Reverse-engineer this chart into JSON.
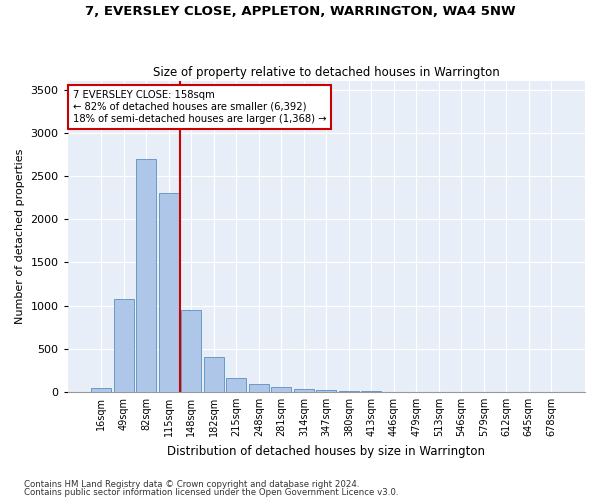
{
  "title": "7, EVERSLEY CLOSE, APPLETON, WARRINGTON, WA4 5NW",
  "subtitle": "Size of property relative to detached houses in Warrington",
  "xlabel": "Distribution of detached houses by size in Warrington",
  "ylabel": "Number of detached properties",
  "categories": [
    "16sqm",
    "49sqm",
    "82sqm",
    "115sqm",
    "148sqm",
    "182sqm",
    "215sqm",
    "248sqm",
    "281sqm",
    "314sqm",
    "347sqm",
    "380sqm",
    "413sqm",
    "446sqm",
    "479sqm",
    "513sqm",
    "546sqm",
    "579sqm",
    "612sqm",
    "645sqm",
    "678sqm"
  ],
  "values": [
    50,
    1075,
    2700,
    2300,
    950,
    400,
    160,
    95,
    55,
    35,
    20,
    10,
    5,
    2,
    1,
    0,
    0,
    0,
    0,
    0,
    0
  ],
  "bar_color": "#aec6e8",
  "bar_edge_color": "#5a8fc0",
  "annotation_title": "7 EVERSLEY CLOSE: 158sqm",
  "annotation_line1": "← 82% of detached houses are smaller (6,392)",
  "annotation_line2": "18% of semi-detached houses are larger (1,368) →",
  "vline_color": "#cc0000",
  "annotation_box_color": "#cc0000",
  "ylim": [
    0,
    3600
  ],
  "yticks": [
    0,
    500,
    1000,
    1500,
    2000,
    2500,
    3000,
    3500
  ],
  "bg_color": "#e8eef7",
  "footer1": "Contains HM Land Registry data © Crown copyright and database right 2024.",
  "footer2": "Contains public sector information licensed under the Open Government Licence v3.0."
}
